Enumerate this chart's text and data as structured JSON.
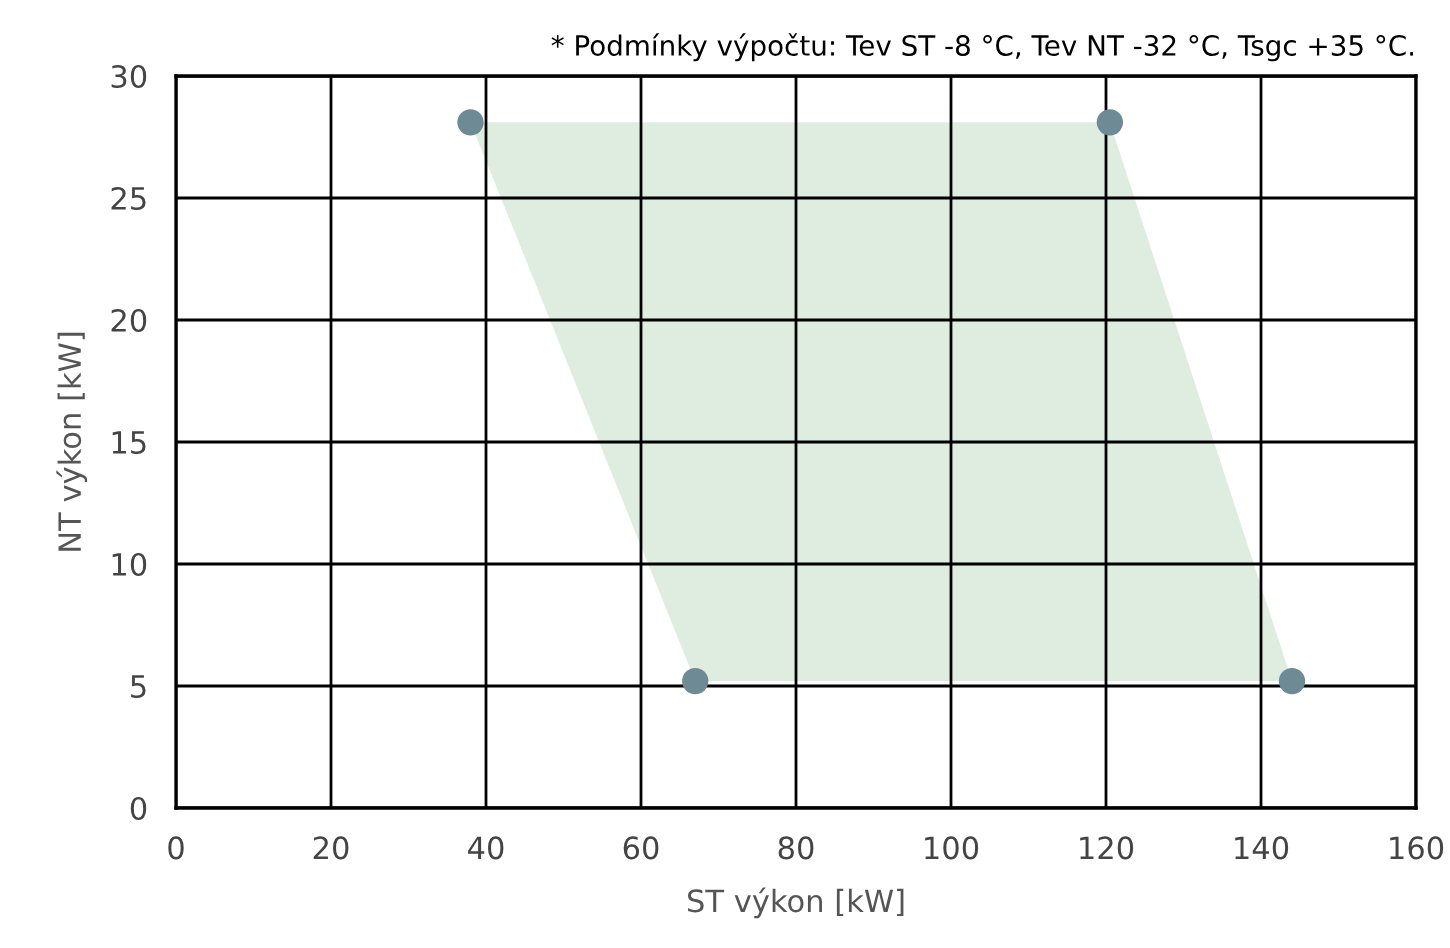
{
  "chart_data": {
    "type": "scatter",
    "xlabel": "ST výkon [kW]",
    "ylabel": "NT výkon [kW]",
    "annotations": [
      "* Podmínky výpočtu: Tev ST -8 °C, Tev NT -32 °C, Tsgc +35 °C."
    ],
    "series": [
      {
        "type": "area",
        "color": "#dfede0",
        "x": [
          38,
          120.5,
          144,
          67
        ],
        "values": [
          28.1,
          28.1,
          5.2,
          5.2
        ]
      },
      {
        "color": "#6e8a95",
        "marker": "circle",
        "x": [
          38,
          120.5,
          67,
          144
        ],
        "values": [
          28.1,
          28.1,
          5.2,
          5.2
        ]
      }
    ],
    "xlim": [
      0,
      160
    ],
    "xticks": [
      0,
      20,
      40,
      60,
      80,
      100,
      120,
      140,
      160
    ],
    "ylim": [
      0,
      30
    ],
    "yticks": [
      0,
      5,
      10,
      15,
      20,
      25,
      30
    ],
    "grid": true,
    "legend": false
  }
}
